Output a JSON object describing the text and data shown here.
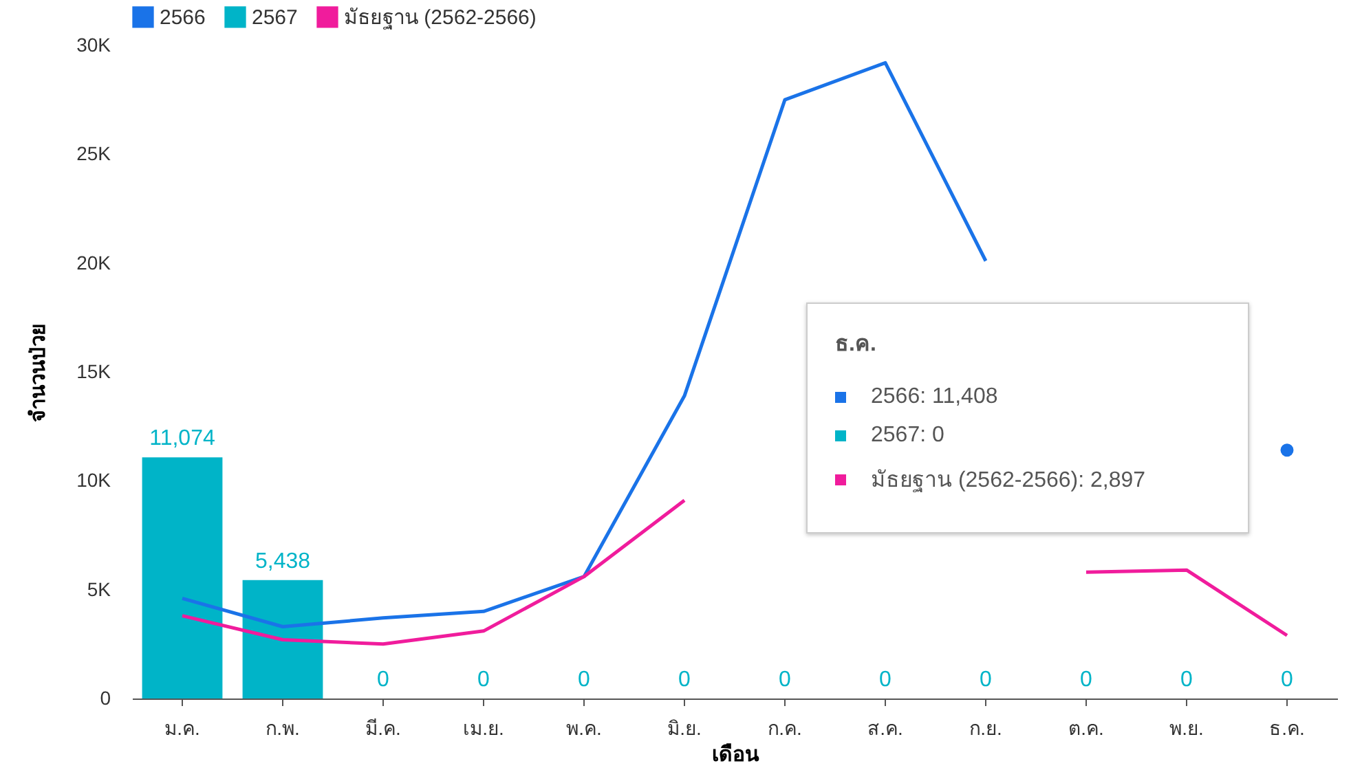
{
  "chart_data": {
    "type": "bar",
    "xlabel": "เดือน",
    "ylabel": "จำนวนป่วย",
    "categories": [
      "ม.ค.",
      "ก.พ.",
      "มี.ค.",
      "เม.ย.",
      "พ.ค.",
      "มิ.ย.",
      "ก.ค.",
      "ส.ค.",
      "ก.ย.",
      "ต.ค.",
      "พ.ย.",
      "ธ.ค."
    ],
    "series": [
      {
        "name": "2566",
        "type": "line",
        "color": "#1a73e8",
        "values": [
          4600,
          3300,
          3700,
          4000,
          5600,
          13900,
          27500,
          29200,
          20100,
          null,
          null,
          11408
        ]
      },
      {
        "name": "2567",
        "color": "#00b4c8",
        "values": [
          11074,
          5438,
          0,
          0,
          0,
          0,
          0,
          0,
          0,
          0,
          0,
          0
        ],
        "value_labels": [
          "11,074",
          "5,438",
          "0",
          "0",
          "0",
          "0",
          "0",
          "0",
          "0",
          "0",
          "0",
          "0"
        ]
      },
      {
        "name": "มัธยฐาน (2562-2566)",
        "type": "line",
        "color": "#f01c9c",
        "values": [
          3800,
          2700,
          2500,
          3100,
          5600,
          9100,
          null,
          null,
          null,
          5800,
          5900,
          2897
        ]
      }
    ],
    "ylim": [
      0,
      30000
    ],
    "yticks": [
      {
        "value": 0,
        "label": "0"
      },
      {
        "value": 5000,
        "label": "5K"
      },
      {
        "value": 10000,
        "label": "10K"
      },
      {
        "value": 15000,
        "label": "15K"
      },
      {
        "value": 20000,
        "label": "20K"
      },
      {
        "value": 25000,
        "label": "25K"
      },
      {
        "value": 30000,
        "label": "30K"
      }
    ],
    "legend": "top left",
    "annotations": [
      "ธ.ค.",
      "2566: 11,408",
      "2567: 0",
      "มัธยฐาน (2562-2566): 2,897"
    ]
  }
}
